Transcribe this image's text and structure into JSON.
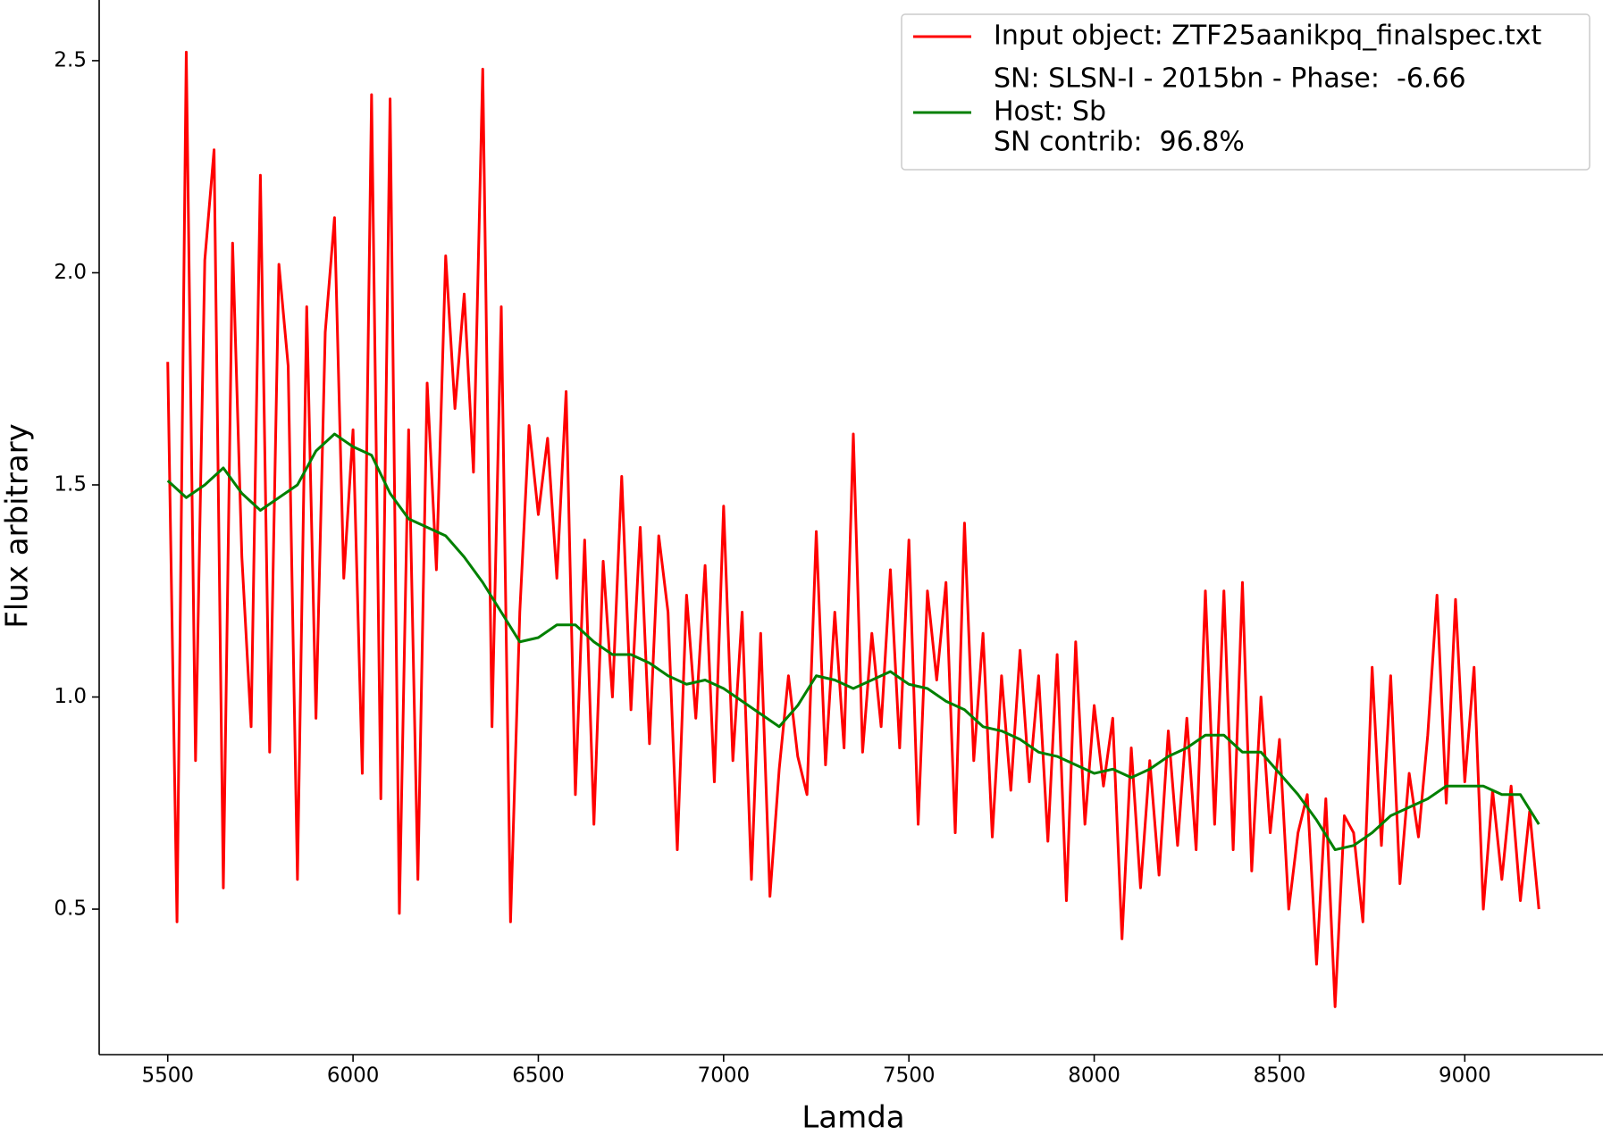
{
  "chart_data": {
    "type": "line",
    "xlabel": "Lamda",
    "ylabel": "Flux arbitrary",
    "xlim": [
      5315,
      9385
    ],
    "ylim": [
      0.157,
      2.643
    ],
    "xticks": [
      5500,
      6000,
      6500,
      7000,
      7500,
      8000,
      8500,
      9000
    ],
    "yticks": [
      0.5,
      {
        "value": 1.0,
        "label": "1.0"
      },
      {
        "value": 1.5,
        "label": "1.5"
      },
      {
        "value": 2.0,
        "label": "2.0"
      },
      2.5
    ],
    "legend": "upper right",
    "annotations": [
      "SN: SLSN-I - 2015bn - Phase:  -6.66",
      "SN contrib:  96.8%"
    ],
    "series": [
      {
        "name": "Input object: ZTF25aanikpq_finalspec.txt",
        "color": "#ff0000",
        "x": [
          5500,
          5525,
          5550,
          5575,
          5600,
          5625,
          5650,
          5675,
          5700,
          5725,
          5750,
          5775,
          5800,
          5825,
          5850,
          5875,
          5900,
          5925,
          5950,
          5975,
          6000,
          6025,
          6050,
          6075,
          6100,
          6125,
          6150,
          6175,
          6200,
          6225,
          6250,
          6275,
          6300,
          6325,
          6350,
          6375,
          6400,
          6425,
          6450,
          6475,
          6500,
          6525,
          6550,
          6575,
          6600,
          6625,
          6650,
          6675,
          6700,
          6725,
          6750,
          6775,
          6800,
          6825,
          6850,
          6875,
          6900,
          6925,
          6950,
          6975,
          7000,
          7025,
          7050,
          7075,
          7100,
          7125,
          7150,
          7175,
          7200,
          7225,
          7250,
          7275,
          7300,
          7325,
          7350,
          7375,
          7400,
          7425,
          7450,
          7475,
          7500,
          7525,
          7550,
          7575,
          7600,
          7625,
          7650,
          7675,
          7700,
          7725,
          7750,
          7775,
          7800,
          7825,
          7850,
          7875,
          7900,
          7925,
          7950,
          7975,
          8000,
          8025,
          8050,
          8075,
          8100,
          8125,
          8150,
          8175,
          8200,
          8225,
          8250,
          8275,
          8300,
          8325,
          8350,
          8375,
          8400,
          8425,
          8450,
          8475,
          8500,
          8525,
          8550,
          8575,
          8600,
          8625,
          8650,
          8675,
          8700,
          8725,
          8750,
          8775,
          8800,
          8825,
          8850,
          8875,
          8900,
          8925,
          8950,
          8975,
          9000,
          9025,
          9050,
          9075,
          9100,
          9125,
          9150,
          9175,
          9200
        ],
        "values": [
          1.79,
          0.47,
          2.52,
          0.85,
          2.03,
          2.29,
          0.55,
          2.07,
          1.33,
          0.93,
          2.23,
          0.87,
          2.02,
          1.78,
          0.57,
          1.92,
          0.95,
          1.86,
          2.13,
          1.28,
          1.63,
          0.82,
          2.42,
          0.76,
          2.41,
          0.49,
          1.63,
          0.57,
          1.74,
          1.3,
          2.04,
          1.68,
          1.95,
          1.53,
          2.48,
          0.93,
          1.92,
          0.47,
          1.2,
          1.64,
          1.43,
          1.61,
          1.28,
          1.72,
          0.77,
          1.37,
          0.7,
          1.32,
          1.0,
          1.52,
          0.97,
          1.4,
          0.89,
          1.38,
          1.2,
          0.64,
          1.24,
          0.95,
          1.31,
          0.8,
          1.45,
          0.85,
          1.2,
          0.57,
          1.15,
          0.53,
          0.83,
          1.05,
          0.86,
          0.77,
          1.39,
          0.84,
          1.2,
          0.88,
          1.62,
          0.87,
          1.15,
          0.93,
          1.3,
          0.88,
          1.37,
          0.7,
          1.25,
          1.04,
          1.27,
          0.68,
          1.41,
          0.85,
          1.15,
          0.67,
          1.05,
          0.78,
          1.11,
          0.8,
          1.05,
          0.66,
          1.1,
          0.52,
          1.13,
          0.7,
          0.98,
          0.79,
          0.95,
          0.43,
          0.88,
          0.55,
          0.85,
          0.58,
          0.92,
          0.65,
          0.95,
          0.64,
          1.25,
          0.7,
          1.25,
          0.64,
          1.27,
          0.59,
          1.0,
          0.68,
          0.9,
          0.5,
          0.68,
          0.77,
          0.37,
          0.76,
          0.27,
          0.72,
          0.68,
          0.47,
          1.07,
          0.65,
          1.05,
          0.56,
          0.82,
          0.67,
          0.91,
          1.24,
          0.75,
          1.23,
          0.8,
          1.07,
          0.5,
          0.78,
          0.57,
          0.79,
          0.52,
          0.73,
          0.5
        ]
      },
      {
        "name": "Host: Sb",
        "color": "#008000",
        "x": [
          5500,
          5550,
          5600,
          5650,
          5700,
          5750,
          5800,
          5850,
          5900,
          5950,
          6000,
          6050,
          6100,
          6150,
          6200,
          6250,
          6300,
          6350,
          6400,
          6450,
          6500,
          6550,
          6600,
          6650,
          6700,
          6750,
          6800,
          6850,
          6900,
          6950,
          7000,
          7050,
          7100,
          7150,
          7200,
          7250,
          7300,
          7350,
          7400,
          7450,
          7500,
          7550,
          7600,
          7650,
          7700,
          7750,
          7800,
          7850,
          7900,
          7950,
          8000,
          8050,
          8100,
          8150,
          8200,
          8250,
          8300,
          8350,
          8400,
          8450,
          8500,
          8550,
          8600,
          8650,
          8700,
          8750,
          8800,
          8850,
          8900,
          8950,
          9000,
          9050,
          9100,
          9150,
          9200
        ],
        "values": [
          1.51,
          1.47,
          1.5,
          1.54,
          1.48,
          1.44,
          1.47,
          1.5,
          1.58,
          1.62,
          1.59,
          1.57,
          1.48,
          1.42,
          1.4,
          1.38,
          1.33,
          1.27,
          1.2,
          1.13,
          1.14,
          1.17,
          1.17,
          1.13,
          1.1,
          1.1,
          1.08,
          1.05,
          1.03,
          1.04,
          1.02,
          0.99,
          0.96,
          0.93,
          0.98,
          1.05,
          1.04,
          1.02,
          1.04,
          1.06,
          1.03,
          1.02,
          0.99,
          0.97,
          0.93,
          0.92,
          0.9,
          0.87,
          0.86,
          0.84,
          0.82,
          0.83,
          0.81,
          0.83,
          0.86,
          0.88,
          0.91,
          0.91,
          0.87,
          0.87,
          0.82,
          0.77,
          0.71,
          0.64,
          0.65,
          0.68,
          0.72,
          0.74,
          0.76,
          0.79,
          0.79,
          0.79,
          0.77,
          0.77,
          0.7
        ]
      }
    ]
  }
}
